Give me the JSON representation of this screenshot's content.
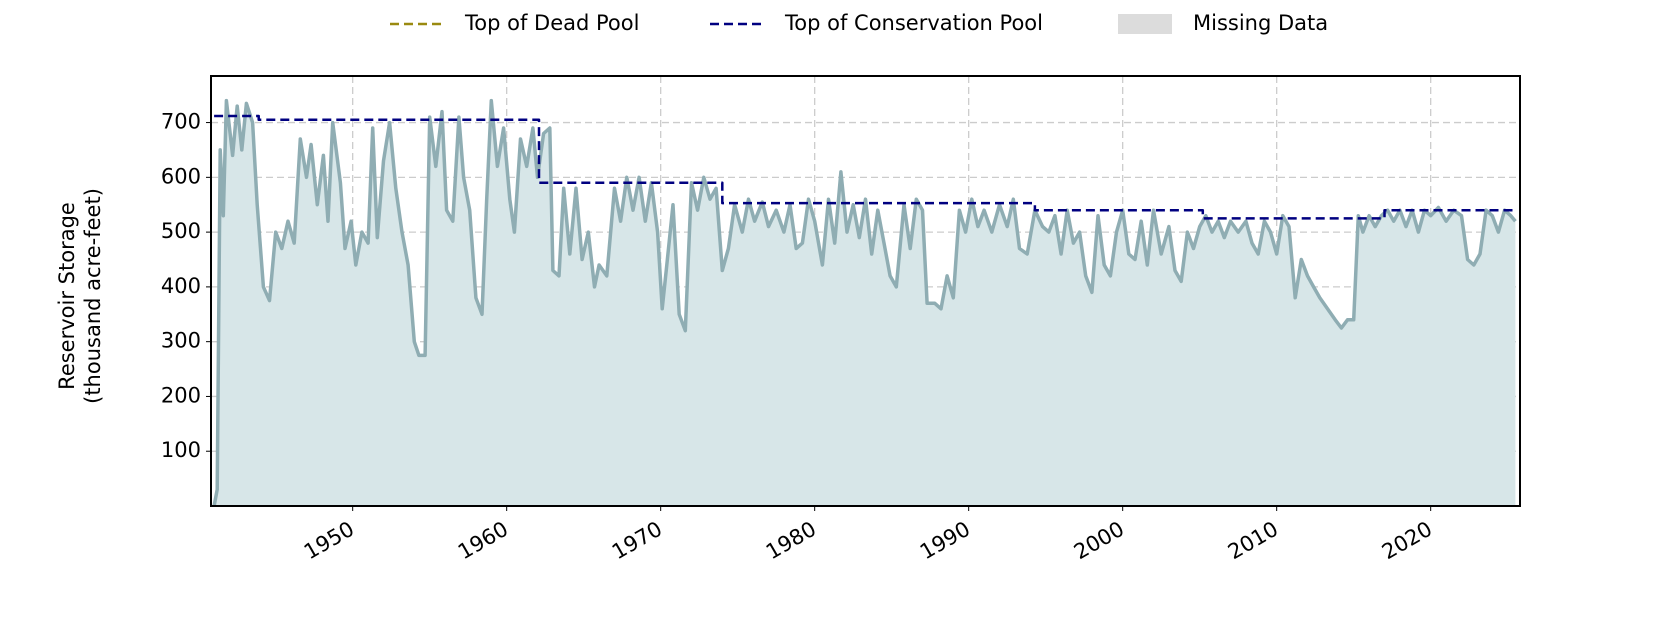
{
  "chart_data": {
    "type": "line",
    "ylabel": [
      "Reservoir Storage",
      "(thousand acre-feet)"
    ],
    "xlim": [
      1940.8,
      2025.8
    ],
    "ylim": [
      0,
      785
    ],
    "xticks": [
      1950,
      1960,
      1970,
      1980,
      1990,
      2000,
      2010,
      2020
    ],
    "yticks": [
      100,
      200,
      300,
      400,
      500,
      600,
      700
    ],
    "grid": true,
    "legend": [
      {
        "name": "Top of Dead Pool",
        "color": "#9a8a10",
        "style": "dashed"
      },
      {
        "name": "Top of Conservation Pool",
        "color": "#000080",
        "style": "dashed"
      },
      {
        "name": "Missing Data",
        "color": "#dcdcdc",
        "style": "patch"
      }
    ],
    "series": [
      {
        "color": "#8fadb3",
        "fill": "#d7e6e8",
        "style": "solid",
        "x": [
          1941.0,
          1941.2,
          1941.4,
          1941.6,
          1941.8,
          1942.2,
          1942.5,
          1942.8,
          1943.1,
          1943.5,
          1943.8,
          1944.2,
          1944.6,
          1945.0,
          1945.4,
          1945.8,
          1946.2,
          1946.6,
          1947.0,
          1947.3,
          1947.7,
          1948.1,
          1948.4,
          1948.7,
          1949.2,
          1949.5,
          1949.9,
          1950.2,
          1950.6,
          1951.0,
          1951.3,
          1951.6,
          1952.0,
          1952.4,
          1952.8,
          1953.2,
          1953.6,
          1954.0,
          1954.3,
          1954.7,
          1955.0,
          1955.4,
          1955.8,
          1956.1,
          1956.5,
          1956.9,
          1957.2,
          1957.6,
          1958.0,
          1958.4,
          1958.7,
          1959.0,
          1959.4,
          1959.8,
          1960.2,
          1960.5,
          1960.9,
          1961.3,
          1961.7,
          1962.0,
          1962.4,
          1962.8,
          1963.0,
          1963.4,
          1963.7,
          1964.1,
          1964.5,
          1964.9,
          1965.3,
          1965.7,
          1966.0,
          1966.5,
          1967.0,
          1967.4,
          1967.8,
          1968.2,
          1968.6,
          1969.0,
          1969.4,
          1969.8,
          1970.1,
          1970.4,
          1970.8,
          1971.2,
          1971.6,
          1972.0,
          1972.4,
          1972.8,
          1973.2,
          1973.6,
          1974.0,
          1974.4,
          1974.8,
          1975.3,
          1975.7,
          1976.1,
          1976.6,
          1977.0,
          1977.5,
          1978.0,
          1978.4,
          1978.8,
          1979.2,
          1979.6,
          1980.0,
          1980.5,
          1980.9,
          1981.3,
          1981.7,
          1982.1,
          1982.5,
          1982.9,
          1983.3,
          1983.7,
          1984.1,
          1984.5,
          1984.9,
          1985.3,
          1985.8,
          1986.2,
          1986.6,
          1987.0,
          1987.3,
          1987.8,
          1988.2,
          1988.6,
          1989.0,
          1989.4,
          1989.8,
          1990.2,
          1990.6,
          1991.0,
          1991.5,
          1992.0,
          1992.5,
          1992.9,
          1993.3,
          1993.8,
          1994.3,
          1994.8,
          1995.2,
          1995.6,
          1996.0,
          1996.4,
          1996.8,
          1997.2,
          1997.6,
          1998.0,
          1998.4,
          1998.8,
          1999.2,
          1999.6,
          2000.0,
          2000.4,
          2000.8,
          2001.2,
          2001.6,
          2002.0,
          2002.5,
          2003.0,
          2003.4,
          2003.8,
          2004.2,
          2004.6,
          2005.0,
          2005.4,
          2005.8,
          2006.2,
          2006.6,
          2007.0,
          2007.5,
          2008.0,
          2008.4,
          2008.8,
          2009.2,
          2009.6,
          2010.0,
          2010.4,
          2010.8,
          2011.2,
          2011.6,
          2012.0,
          2012.4,
          2012.8,
          2013.3,
          2013.8,
          2014.2,
          2014.6,
          2015.0,
          2015.3,
          2015.6,
          2016.0,
          2016.4,
          2016.8,
          2017.2,
          2017.6,
          2018.0,
          2018.4,
          2018.8,
          2019.2,
          2019.6,
          2020.0,
          2020.5,
          2021.0,
          2021.5,
          2022.0,
          2022.4,
          2022.8,
          2023.2,
          2023.6,
          2024.0,
          2024.4,
          2024.8,
          2025.2,
          2025.5
        ],
        "values": [
          0,
          30,
          650,
          530,
          740,
          640,
          730,
          650,
          735,
          700,
          550,
          400,
          375,
          500,
          470,
          520,
          480,
          670,
          600,
          660,
          550,
          640,
          520,
          700,
          590,
          470,
          520,
          440,
          500,
          480,
          690,
          490,
          630,
          700,
          580,
          500,
          440,
          300,
          275,
          275,
          710,
          620,
          720,
          540,
          520,
          710,
          600,
          540,
          380,
          350,
          560,
          740,
          620,
          690,
          560,
          500,
          670,
          620,
          690,
          600,
          680,
          690,
          430,
          420,
          580,
          460,
          580,
          450,
          500,
          400,
          440,
          420,
          580,
          520,
          600,
          540,
          600,
          520,
          590,
          500,
          360,
          440,
          550,
          350,
          320,
          590,
          540,
          600,
          560,
          580,
          430,
          470,
          550,
          500,
          560,
          520,
          555,
          510,
          540,
          500,
          550,
          470,
          480,
          560,
          520,
          440,
          560,
          480,
          610,
          500,
          550,
          490,
          560,
          460,
          540,
          480,
          420,
          400,
          550,
          470,
          560,
          540,
          370,
          370,
          360,
          420,
          380,
          540,
          500,
          560,
          510,
          540,
          500,
          550,
          510,
          560,
          470,
          460,
          540,
          510,
          500,
          530,
          460,
          540,
          480,
          500,
          420,
          390,
          530,
          440,
          420,
          500,
          540,
          460,
          450,
          520,
          440,
          540,
          460,
          510,
          430,
          410,
          500,
          470,
          510,
          530,
          500,
          520,
          490,
          520,
          500,
          520,
          480,
          460,
          520,
          500,
          460,
          530,
          510,
          380,
          450,
          420,
          400,
          380,
          360,
          340,
          325,
          340,
          340,
          530,
          500,
          530,
          510,
          530,
          540,
          520,
          540,
          510,
          540,
          500,
          540,
          530,
          545,
          520,
          540,
          530,
          450,
          440,
          460,
          540,
          530,
          500,
          540,
          530,
          520
        ]
      },
      {
        "color": "#000080",
        "style": "dashed",
        "x": [
          1941.0,
          1943.9,
          1943.9,
          1962.1,
          1962.1,
          1974.0,
          1974.0,
          1994.3,
          1994.3,
          2005.2,
          2005.2,
          2017.0,
          2017.0,
          2025.5
        ],
        "values": [
          712,
          712,
          705,
          705,
          590,
          590,
          553,
          553,
          540,
          540,
          525,
          525,
          540,
          540
        ]
      }
    ]
  }
}
